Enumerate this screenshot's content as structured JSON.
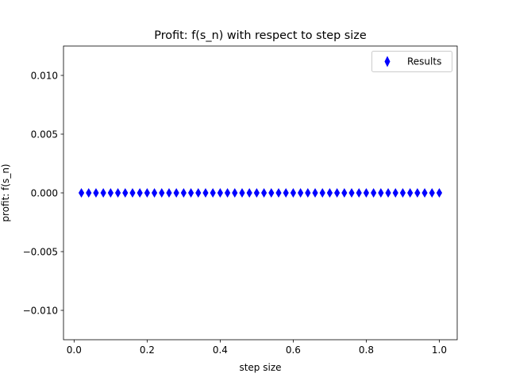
{
  "chart_data": {
    "type": "scatter",
    "title": "Profit: f(s_n) with respect to step size",
    "xlabel": "step size",
    "ylabel": "profit: f(s_n)",
    "xlim": [
      -0.029,
      1.049
    ],
    "ylim": [
      -0.0125,
      0.0125
    ],
    "xticks": [
      0.0,
      0.2,
      0.4,
      0.6,
      0.8,
      1.0
    ],
    "xtick_labels": [
      "0.0",
      "0.2",
      "0.4",
      "0.6",
      "0.8",
      "1.0"
    ],
    "yticks": [
      -0.01,
      -0.005,
      0.0,
      0.005,
      0.01
    ],
    "ytick_labels": [
      "−0.010",
      "−0.005",
      "0.000",
      "0.005",
      "0.010"
    ],
    "legend": {
      "label": "Results",
      "location": "upper right"
    },
    "series": [
      {
        "name": "Results",
        "marker": "thin_diamond",
        "color": "#0000ff",
        "x": [
          0.02,
          0.04,
          0.06,
          0.08,
          0.1,
          0.12,
          0.14,
          0.16,
          0.18,
          0.2,
          0.22,
          0.24,
          0.26,
          0.28,
          0.3,
          0.32,
          0.34,
          0.36,
          0.38,
          0.4,
          0.42,
          0.44,
          0.46,
          0.48,
          0.5,
          0.52,
          0.54,
          0.56,
          0.58,
          0.6,
          0.62,
          0.64,
          0.66,
          0.68,
          0.7,
          0.72,
          0.74,
          0.76,
          0.78,
          0.8,
          0.82,
          0.84,
          0.86,
          0.88,
          0.9,
          0.92,
          0.94,
          0.96,
          0.98,
          1.0
        ],
        "y": [
          0,
          0,
          0,
          0,
          0,
          0,
          0,
          0,
          0,
          0,
          0,
          0,
          0,
          0,
          0,
          0,
          0,
          0,
          0,
          0,
          0,
          0,
          0,
          0,
          0,
          0,
          0,
          0,
          0,
          0,
          0,
          0,
          0,
          0,
          0,
          0,
          0,
          0,
          0,
          0,
          0,
          0,
          0,
          0,
          0,
          0,
          0,
          0,
          0,
          0
        ]
      }
    ]
  }
}
